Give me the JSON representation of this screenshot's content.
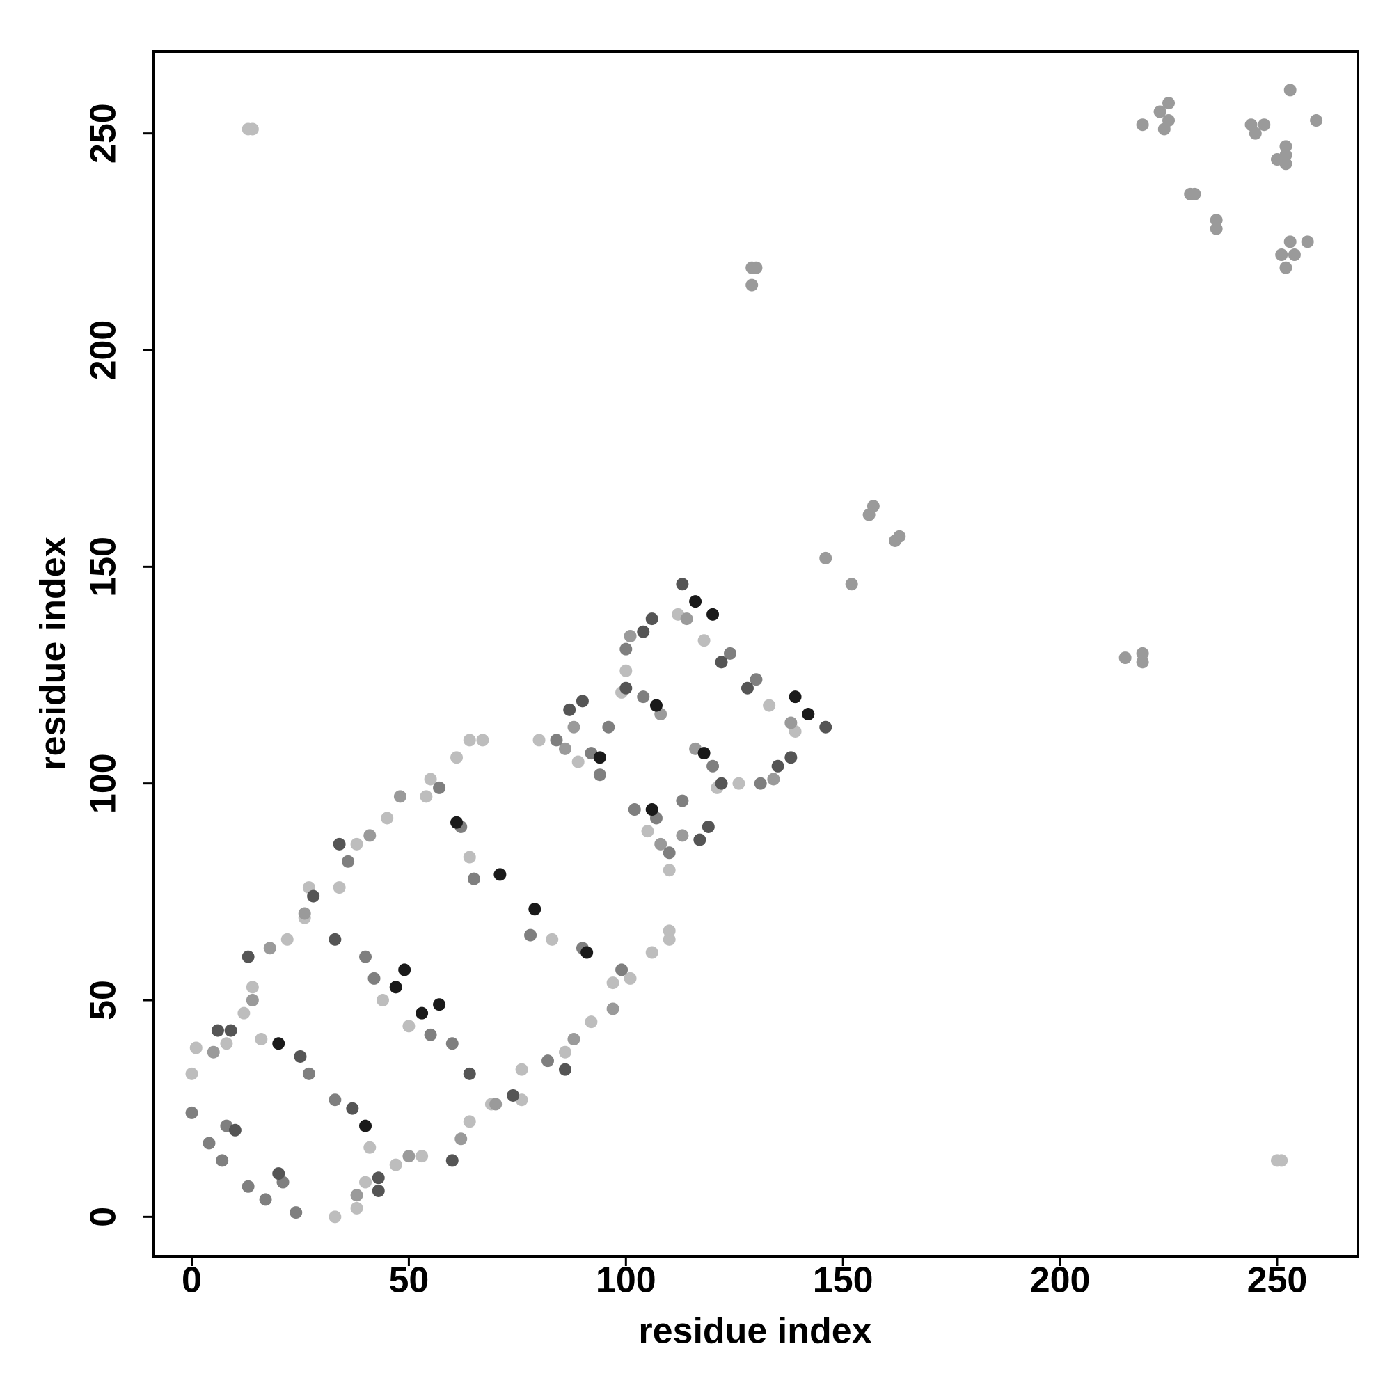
{
  "chart_data": {
    "type": "scatter",
    "xlabel": "residue index",
    "ylabel": "residue index",
    "xlim": [
      -8.9,
      268.6
    ],
    "ylim": [
      -9.1,
      268.9
    ],
    "xticks": [
      0,
      50,
      100,
      150,
      200,
      250
    ],
    "yticks": [
      0,
      50,
      100,
      150,
      200,
      250
    ],
    "series": [
      {
        "color": "#bdbdbd",
        "x": [
          13,
          14,
          250,
          251,
          0,
          33,
          1,
          38,
          8,
          40,
          12,
          47,
          16,
          41,
          22,
          64,
          27,
          76,
          45,
          92,
          55,
          101,
          67,
          110,
          64,
          110,
          61,
          106,
          80,
          110,
          89,
          105,
          99,
          121,
          112,
          139,
          118,
          133,
          97,
          54,
          86,
          38,
          53,
          14,
          69,
          26,
          76,
          34,
          50,
          44,
          83,
          64,
          100,
          126
        ],
        "values": [
          251,
          251,
          13,
          13,
          33,
          0,
          39,
          2,
          40,
          8,
          47,
          12,
          41,
          16,
          64,
          22,
          76,
          27,
          92,
          45,
          101,
          55,
          110,
          66,
          110,
          64,
          106,
          61,
          110,
          80,
          105,
          89,
          121,
          99,
          139,
          112,
          133,
          118,
          54,
          97,
          38,
          86,
          14,
          53,
          26,
          69,
          34,
          76,
          44,
          50,
          64,
          83,
          126,
          100
        ]
      },
      {
        "color": "#9a9a9a",
        "x": [
          129,
          130,
          129,
          146,
          152,
          156,
          157,
          162,
          163,
          215,
          219,
          219,
          219,
          223,
          224,
          225,
          225,
          230,
          231,
          236,
          236,
          244,
          245,
          247,
          250,
          252,
          252,
          252,
          253,
          252,
          251,
          254,
          253,
          257,
          259,
          5,
          38,
          14,
          50,
          18,
          62,
          26,
          70,
          41,
          88,
          48,
          97,
          88,
          113,
          101,
          134,
          114,
          138,
          108,
          86,
          116,
          108
        ],
        "values": [
          219,
          219,
          215,
          152,
          146,
          162,
          164,
          156,
          157,
          129,
          128,
          130,
          252,
          255,
          251,
          257,
          253,
          236,
          236,
          228,
          230,
          252,
          250,
          252,
          244,
          245,
          243,
          247,
          225,
          219,
          222,
          222,
          260,
          225,
          253,
          38,
          5,
          50,
          14,
          62,
          18,
          70,
          26,
          88,
          41,
          97,
          48,
          113,
          88,
          134,
          101,
          138,
          114,
          86,
          108,
          108,
          116
        ]
      },
      {
        "color": "#7f7f7f",
        "x": [
          0,
          24,
          4,
          17,
          7,
          13,
          21,
          8,
          33,
          27,
          40,
          60,
          42,
          55,
          62,
          90,
          65,
          78,
          92,
          107,
          104,
          120,
          124,
          130,
          102,
          94,
          131,
          100,
          96,
          113,
          36,
          82,
          57,
          99,
          110,
          84
        ],
        "values": [
          24,
          1,
          17,
          4,
          13,
          7,
          8,
          21,
          27,
          33,
          60,
          40,
          55,
          42,
          90,
          62,
          78,
          65,
          107,
          92,
          120,
          104,
          130,
          124,
          94,
          102,
          100,
          131,
          113,
          96,
          82,
          36,
          99,
          57,
          84,
          110
        ]
      },
      {
        "color": "#555555",
        "x": [
          113,
          146,
          106,
          138,
          128,
          122,
          135,
          104,
          10,
          20,
          33,
          64,
          13,
          60,
          87,
          117,
          90,
          119,
          122,
          100,
          25,
          37,
          43,
          9,
          6,
          43,
          34,
          86,
          28,
          74
        ],
        "values": [
          146,
          113,
          138,
          106,
          122,
          128,
          104,
          135,
          20,
          10,
          64,
          33,
          60,
          13,
          117,
          87,
          119,
          90,
          100,
          122,
          37,
          25,
          9,
          43,
          43,
          6,
          86,
          34,
          74,
          28
        ]
      },
      {
        "color": "#1a1a1a",
        "x": [
          20,
          40,
          47,
          53,
          49,
          57,
          61,
          91,
          71,
          79,
          94,
          106,
          107,
          118,
          116,
          142,
          120,
          139
        ],
        "values": [
          40,
          21,
          53,
          47,
          57,
          49,
          91,
          61,
          79,
          71,
          106,
          94,
          118,
          107,
          142,
          116,
          139,
          120
        ]
      }
    ]
  }
}
